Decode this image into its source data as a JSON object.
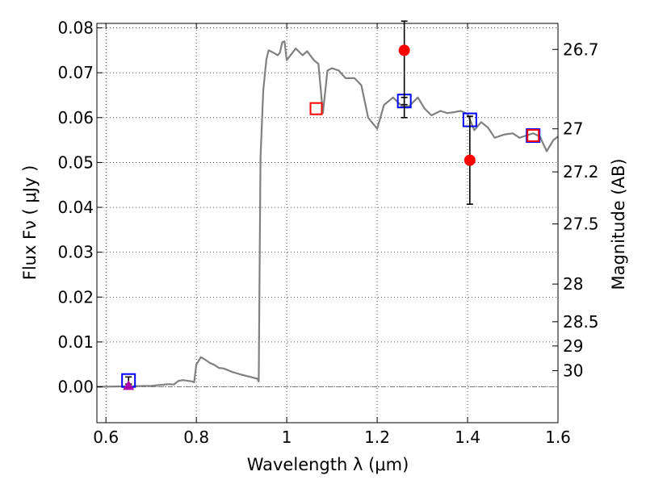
{
  "chart_data": {
    "type": "scatter",
    "xlabel": "Wavelength  λ (μm)",
    "ylabel_left": "Flux  Fν  ( μJy )",
    "ylabel_right": "Magnitude (AB)",
    "xlim": [
      0.58,
      1.6
    ],
    "ylim": [
      -0.008,
      0.081
    ],
    "grid": true,
    "x_ticks": [
      0.6,
      0.8,
      1.0,
      1.2,
      1.4,
      1.6
    ],
    "x_tick_labels": [
      "0.6",
      "0.8",
      "1",
      "1.2",
      "1.4",
      "1.6"
    ],
    "y_ticks": [
      0.0,
      0.01,
      0.02,
      0.03,
      0.04,
      0.05,
      0.06,
      0.07,
      0.08
    ],
    "y_tick_labels": [
      "0.00",
      "0.01",
      "0.02",
      "0.03",
      "0.04",
      "0.05",
      "0.06",
      "0.07",
      "0.08"
    ],
    "right_axis_ticks": [
      {
        "flux": 0.0752,
        "label": "26.7"
      },
      {
        "flux": 0.0575,
        "label": "27"
      },
      {
        "flux": 0.0479,
        "label": "27.2"
      },
      {
        "flux": 0.0363,
        "label": "27.5"
      },
      {
        "flux": 0.0229,
        "label": "28"
      },
      {
        "flux": 0.0145,
        "label": "28.5"
      },
      {
        "flux": 0.0091,
        "label": "29"
      },
      {
        "flux": 0.0036,
        "label": "30"
      }
    ],
    "series": [
      {
        "kind": "line",
        "color": "#808080",
        "x": [
          0.58,
          0.7,
          0.73,
          0.74,
          0.75,
          0.76,
          0.77,
          0.79,
          0.795,
          0.8,
          0.81,
          0.82,
          0.83,
          0.84,
          0.85,
          0.86,
          0.88,
          0.9,
          0.92,
          0.935,
          0.938,
          0.942,
          0.948,
          0.955,
          0.96,
          0.97,
          0.975,
          0.98,
          0.985,
          0.99,
          0.995,
          1.0,
          1.02,
          1.035,
          1.045,
          1.06,
          1.07,
          1.08,
          1.09,
          1.1,
          1.115,
          1.13,
          1.15,
          1.165,
          1.18,
          1.2,
          1.215,
          1.235,
          1.255,
          1.27,
          1.29,
          1.305,
          1.32,
          1.34,
          1.355,
          1.37,
          1.385,
          1.4,
          1.415,
          1.43,
          1.445,
          1.46,
          1.48,
          1.5,
          1.515,
          1.53,
          1.545,
          1.56,
          1.575,
          1.59,
          1.6
        ],
        "y": [
          0.0,
          0.0002,
          0.0005,
          0.0006,
          0.0005,
          0.0013,
          0.0015,
          0.0012,
          0.001,
          0.005,
          0.0066,
          0.006,
          0.0053,
          0.0049,
          0.0042,
          0.0041,
          0.0033,
          0.0027,
          0.0022,
          0.0018,
          0.0012,
          0.051,
          0.066,
          0.073,
          0.075,
          0.0745,
          0.0742,
          0.0739,
          0.0745,
          0.0768,
          0.077,
          0.0728,
          0.0754,
          0.0739,
          0.0748,
          0.0728,
          0.072,
          0.061,
          0.0705,
          0.071,
          0.0705,
          0.0688,
          0.0688,
          0.0672,
          0.06,
          0.0575,
          0.0628,
          0.0645,
          0.0625,
          0.0625,
          0.0645,
          0.062,
          0.0605,
          0.0615,
          0.061,
          0.0612,
          0.0615,
          0.0608,
          0.0572,
          0.059,
          0.0578,
          0.0555,
          0.0562,
          0.0565,
          0.0555,
          0.056,
          0.0565,
          0.0558,
          0.0525,
          0.055,
          0.0558
        ]
      },
      {
        "name": "",
        "kind": "open_square",
        "color": "#0000ff",
        "x": [
          0.65,
          1.26,
          1.405,
          1.545
        ],
        "y": [
          0.0014,
          0.0637,
          0.0595,
          0.056
        ],
        "yerr": [
          [
            0.0008,
            0.0008
          ],
          [
            0.0008,
            0.0008
          ],
          [
            0.0,
            0.0
          ],
          [
            0.0,
            0.0
          ]
        ]
      },
      {
        "name": "",
        "kind": "open_square",
        "color": "#ff0000",
        "x": [
          1.065,
          1.545
        ],
        "y": [
          0.062,
          0.056
        ]
      },
      {
        "name": "",
        "kind": "filled_circle",
        "color": "#ff0000",
        "x": [
          1.26,
          1.405
        ],
        "y": [
          0.075,
          0.0505
        ],
        "yerr": [
          [
            0.015,
            0.0065
          ],
          [
            0.0098,
            0.0098
          ]
        ]
      },
      {
        "name": "",
        "kind": "filled_triangle",
        "color": "#aa00aa",
        "x": [
          0.65
        ],
        "y": [
          0.0002
        ]
      }
    ]
  }
}
